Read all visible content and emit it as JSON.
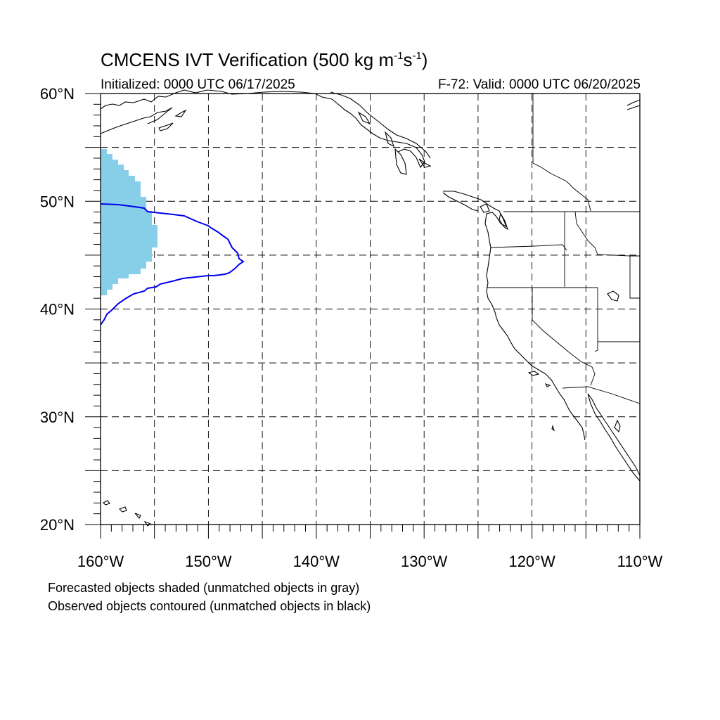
{
  "title": {
    "prefix": "CMCENS IVT Verification (500 kg m",
    "exp1": "-1",
    "mid": "s",
    "exp2": "-1",
    "suffix": ")"
  },
  "subtitle_left": "Initialized: 0000 UTC 06/17/2025",
  "subtitle_right": "F-72: Valid: 0000 UTC 06/20/2025",
  "map": {
    "lon_range": [
      -160,
      -110
    ],
    "lat_range": [
      20,
      60
    ],
    "lon_tick_labels": [
      "160°W",
      "150°W",
      "140°W",
      "130°W",
      "120°W",
      "110°W"
    ],
    "lat_tick_labels": [
      "20°N",
      "30°N",
      "40°N",
      "50°N",
      "60°N"
    ],
    "gridlines": "dashed, every 5 degrees",
    "forecast_fill_color": "#87CEE8",
    "observed_contour_color": "#0000EE"
  },
  "legend_notes": [
    "Forecasted objects shaded (unmatched objects in gray)",
    "Observed objects contoured (unmatched objects in black)"
  ]
}
